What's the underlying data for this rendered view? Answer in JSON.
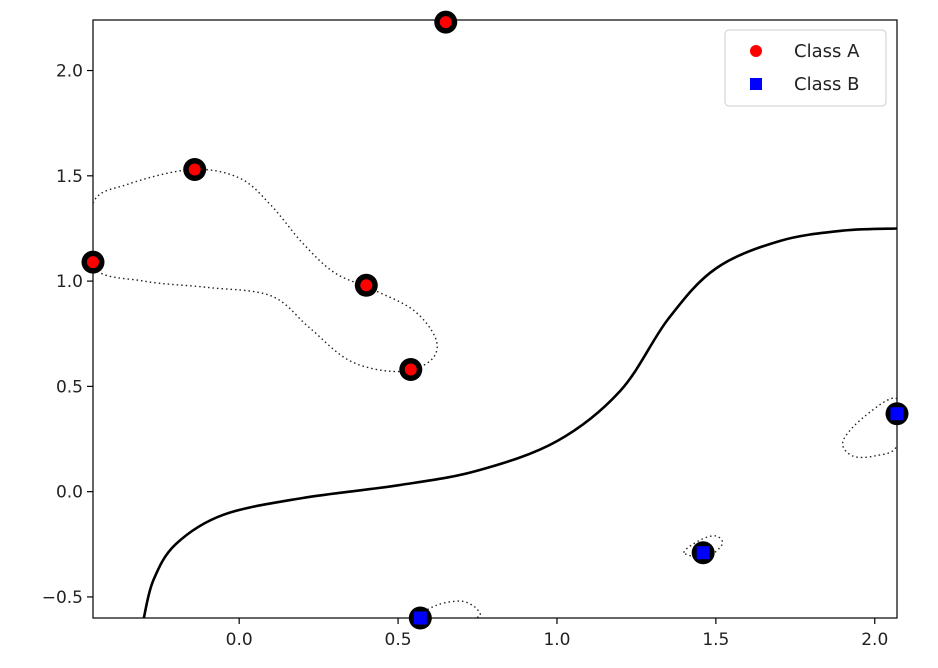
{
  "chart_data": {
    "type": "scatter",
    "xlim": [
      -0.46,
      2.07
    ],
    "ylim": [
      -0.6,
      2.24
    ],
    "x_ticks": [
      {
        "value": 0.0,
        "label": "0.0"
      },
      {
        "value": 0.5,
        "label": "0.5"
      },
      {
        "value": 1.0,
        "label": "1.0"
      },
      {
        "value": 1.5,
        "label": "1.5"
      },
      {
        "value": 2.0,
        "label": "2.0"
      }
    ],
    "y_ticks": [
      {
        "value": -0.5,
        "label": "−0.5"
      },
      {
        "value": 0.0,
        "label": "0.0"
      },
      {
        "value": 0.5,
        "label": "0.5"
      },
      {
        "value": 1.0,
        "label": "1.0"
      },
      {
        "value": 1.5,
        "label": "1.5"
      },
      {
        "value": 2.0,
        "label": "2.0"
      }
    ],
    "grid": false,
    "legend_position": "top-right",
    "series": [
      {
        "name": "Class A",
        "marker": "circle",
        "color": "#ff0000",
        "points": [
          {
            "x": 0.65,
            "y": 2.23
          },
          {
            "x": -0.14,
            "y": 1.53
          },
          {
            "x": -0.46,
            "y": 1.09
          },
          {
            "x": 0.4,
            "y": 0.98
          },
          {
            "x": 0.54,
            "y": 0.58
          }
        ]
      },
      {
        "name": "Class B",
        "marker": "square",
        "color": "#0000ff",
        "points": [
          {
            "x": 2.07,
            "y": 0.37
          },
          {
            "x": 1.46,
            "y": -0.29
          },
          {
            "x": 0.57,
            "y": -0.6
          }
        ]
      }
    ],
    "decision_boundary": [
      [
        -0.3,
        -0.6
      ],
      [
        -0.27,
        -0.42
      ],
      [
        -0.2,
        -0.25
      ],
      [
        -0.05,
        -0.11
      ],
      [
        0.2,
        -0.03
      ],
      [
        0.5,
        0.03
      ],
      [
        0.75,
        0.1
      ],
      [
        1.0,
        0.24
      ],
      [
        1.2,
        0.48
      ],
      [
        1.35,
        0.82
      ],
      [
        1.5,
        1.06
      ],
      [
        1.7,
        1.19
      ],
      [
        1.9,
        1.24
      ],
      [
        2.07,
        1.25
      ]
    ],
    "margins": [
      [
        [
          -0.46,
          1.37
        ],
        [
          -0.35,
          1.46
        ],
        [
          -0.15,
          1.53
        ],
        [
          0.0,
          1.49
        ],
        [
          0.1,
          1.36
        ],
        [
          0.2,
          1.18
        ],
        [
          0.3,
          1.04
        ],
        [
          0.42,
          0.96
        ],
        [
          0.55,
          0.86
        ],
        [
          0.62,
          0.72
        ],
        [
          0.6,
          0.62
        ],
        [
          0.5,
          0.57
        ],
        [
          0.35,
          0.62
        ],
        [
          0.22,
          0.78
        ],
        [
          0.1,
          0.93
        ],
        [
          -0.1,
          0.97
        ],
        [
          -0.3,
          1.0
        ],
        [
          -0.46,
          1.07
        ]
      ],
      [
        [
          2.07,
          0.44
        ],
        [
          1.97,
          0.36
        ],
        [
          1.9,
          0.24
        ],
        [
          1.93,
          0.17
        ],
        [
          2.0,
          0.17
        ],
        [
          2.07,
          0.22
        ]
      ],
      [
        [
          1.4,
          -0.29
        ],
        [
          1.45,
          -0.23
        ],
        [
          1.5,
          -0.21
        ],
        [
          1.52,
          -0.25
        ],
        [
          1.47,
          -0.31
        ]
      ],
      [
        [
          0.57,
          -0.6
        ],
        [
          0.62,
          -0.54
        ],
        [
          0.7,
          -0.52
        ],
        [
          0.75,
          -0.56
        ],
        [
          0.74,
          -0.6
        ]
      ]
    ]
  }
}
